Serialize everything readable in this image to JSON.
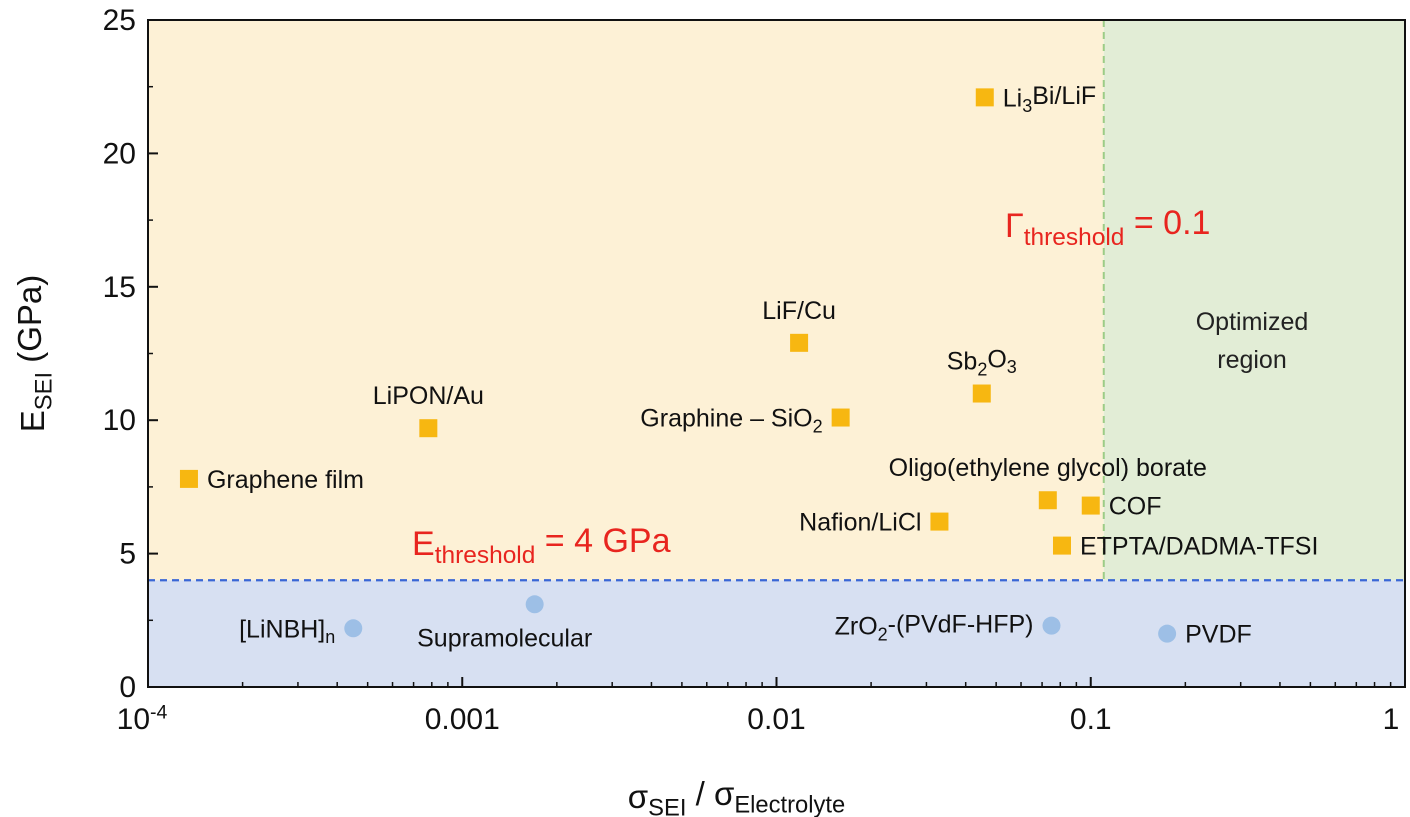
{
  "chart_data": {
    "type": "scatter",
    "xscale": "log",
    "xlim": [
      0.0001,
      1
    ],
    "ylim": [
      0,
      25
    ],
    "xlabel": {
      "main": "σ",
      "sub1": "SEI",
      "mid": " / σ",
      "sub2": "Electrolyte"
    },
    "ylabel": {
      "main": "E",
      "sub": "SEI",
      "rest": " (GPa)"
    },
    "x_ticks": [
      {
        "value": 0.0001,
        "base": "10",
        "sup": "-4"
      },
      {
        "value": 0.001,
        "base": "0.001",
        "sup": ""
      },
      {
        "value": 0.01,
        "base": "0.01",
        "sup": ""
      },
      {
        "value": 0.1,
        "base": "0.1",
        "sup": ""
      },
      {
        "value": 1,
        "base": "1",
        "sup": ""
      }
    ],
    "y_ticks": [
      0,
      5,
      10,
      15,
      20,
      25
    ],
    "grid": false,
    "regions": [
      {
        "name": "above-threshold",
        "color": "#fdf1d6"
      },
      {
        "name": "below-threshold",
        "color": "#d7e0f2"
      },
      {
        "name": "optimized",
        "color": "#e2edd6",
        "label_lines": [
          "Optimized",
          "region"
        ]
      }
    ],
    "thresholds": {
      "e": {
        "value": 4,
        "color": "#3a67d6",
        "parts": [
          [
            "E",
            "n"
          ],
          [
            "threshold",
            "s"
          ],
          [
            " = 4 GPa",
            "n"
          ]
        ]
      },
      "gamma": {
        "value": 0.11,
        "color": "#9ccc86",
        "parts": [
          [
            "Γ",
            "n"
          ],
          [
            "threshold",
            "s"
          ],
          [
            " = 0.1",
            "n"
          ]
        ]
      }
    },
    "label_color": "#e8251f",
    "series": [
      {
        "marker": "square",
        "color": "#f7b711",
        "points": [
          {
            "x": 0.000135,
            "y": 7.8,
            "label": [
              [
                "Graphene film",
                "n"
              ]
            ],
            "anchor": "right"
          },
          {
            "x": 0.00078,
            "y": 9.7,
            "label": [
              [
                "LiPON/Au",
                "n"
              ]
            ],
            "anchor": "above"
          },
          {
            "x": 0.0118,
            "y": 12.9,
            "label": [
              [
                "LiF/Cu",
                "n"
              ]
            ],
            "anchor": "above"
          },
          {
            "x": 0.016,
            "y": 10.1,
            "label": [
              [
                "Graphine – SiO",
                "n"
              ],
              [
                "2",
                "s"
              ]
            ],
            "anchor": "left"
          },
          {
            "x": 0.046,
            "y": 22.1,
            "label": [
              [
                "Li",
                "n"
              ],
              [
                "3",
                "s"
              ],
              [
                "Bi/LiF",
                "n"
              ]
            ],
            "anchor": "right"
          },
          {
            "x": 0.045,
            "y": 11.0,
            "label": [
              [
                "Sb",
                "n"
              ],
              [
                "2",
                "s"
              ],
              [
                "O",
                "n"
              ],
              [
                "3",
                "s"
              ]
            ],
            "anchor": "above"
          },
          {
            "x": 0.033,
            "y": 6.2,
            "label": [
              [
                "Nafion/LiCl",
                "n"
              ]
            ],
            "anchor": "left"
          },
          {
            "x": 0.073,
            "y": 7.0,
            "label": [
              [
                "Oligo(ethylene glycol) borate",
                "n"
              ]
            ],
            "anchor": "above"
          },
          {
            "x": 0.1,
            "y": 6.8,
            "label": [
              [
                "COF",
                "n"
              ]
            ],
            "anchor": "right"
          },
          {
            "x": 0.081,
            "y": 5.3,
            "label": [
              [
                "ETPTA/DADMA-TFSI",
                "n"
              ]
            ],
            "anchor": "right"
          }
        ]
      },
      {
        "marker": "circle",
        "color": "#9dbfe6",
        "points": [
          {
            "x": 0.00045,
            "y": 2.2,
            "label": [
              [
                "[LiNBH]",
                "n"
              ],
              [
                "n",
                "s"
              ]
            ],
            "anchor": "left"
          },
          {
            "x": 0.0017,
            "y": 3.1,
            "label": [
              [
                "Supramolecular",
                "n"
              ]
            ],
            "anchor": "below"
          },
          {
            "x": 0.075,
            "y": 2.3,
            "label": [
              [
                "ZrO",
                "n"
              ],
              [
                "2",
                "s"
              ],
              [
                "-(PVdF-HFP)",
                "n"
              ]
            ],
            "anchor": "left"
          },
          {
            "x": 0.175,
            "y": 2.0,
            "label": [
              [
                "PVDF",
                "n"
              ]
            ],
            "anchor": "right"
          }
        ]
      }
    ]
  }
}
